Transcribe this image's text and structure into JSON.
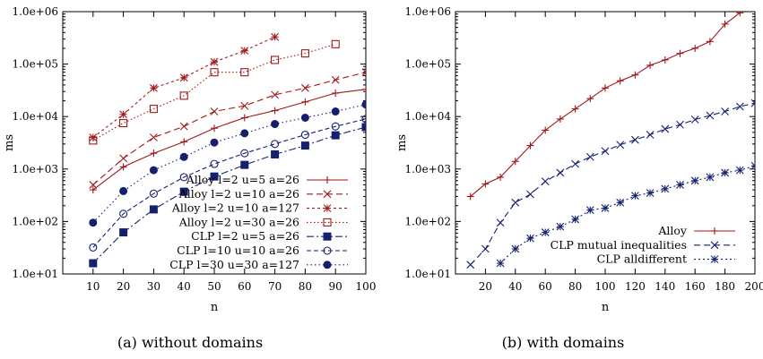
{
  "chart_data": [
    {
      "type": "line",
      "caption": "(a) without domains",
      "xlabel": "n",
      "ylabel": "ms",
      "yscale": "log",
      "xlim": [
        0,
        100
      ],
      "ylim": [
        10,
        1000000
      ],
      "xticks": [
        10,
        20,
        30,
        40,
        50,
        60,
        70,
        80,
        90,
        100
      ],
      "xtick_labels": [
        "10",
        "20",
        "30",
        "40",
        "50",
        "60",
        "70",
        "80",
        "90",
        "100"
      ],
      "yticks": [
        10,
        100,
        1000,
        10000,
        100000,
        1000000
      ],
      "ytick_labels": [
        "1.0e+01",
        "1.0e+02",
        "1.0e+03",
        "1.0e+04",
        "1.0e+05",
        "1.0e+06"
      ],
      "grid": false,
      "legend_position": "bottom-right",
      "series": [
        {
          "name": "Alloy l=2 u=5 a=26",
          "color": "#a01818",
          "dash": "",
          "marker": "plus",
          "x": [
            10,
            20,
            30,
            40,
            50,
            60,
            70,
            80,
            90,
            100
          ],
          "y": [
            400,
            1100,
            2000,
            3300,
            6000,
            9500,
            13000,
            19000,
            28000,
            33000
          ]
        },
        {
          "name": "Alloy l=2 u=10 a=26",
          "color": "#a01818",
          "dash": "7,4",
          "marker": "cross",
          "x": [
            10,
            20,
            30,
            40,
            50,
            60,
            70,
            80,
            90,
            100
          ],
          "y": [
            500,
            1600,
            4000,
            6500,
            12500,
            16000,
            26000,
            35000,
            50000,
            70000
          ]
        },
        {
          "name": "Alloy l=2 u=10 a=127",
          "color": "#a01818",
          "dash": "3,3",
          "marker": "star",
          "x": [
            10,
            20,
            30,
            40,
            50,
            60,
            70
          ],
          "y": [
            4000,
            11000,
            35000,
            55000,
            110000,
            180000,
            330000
          ]
        },
        {
          "name": "Alloy l=2 u=30 a=26",
          "color": "#a01818",
          "dash": "1.5,2.5",
          "marker": "open-square",
          "x": [
            10,
            20,
            30,
            40,
            50,
            60,
            70,
            80,
            90
          ],
          "y": [
            3500,
            7500,
            14000,
            25000,
            70000,
            70000,
            120000,
            160000,
            240000
          ]
        },
        {
          "name": "CLP l=2 u=5 a=26",
          "color": "#14206e",
          "dash": "8,3,2,3",
          "marker": "filled-square",
          "x": [
            10,
            20,
            30,
            40,
            50,
            60,
            70,
            80,
            90,
            100
          ],
          "y": [
            16,
            62,
            170,
            370,
            720,
            1200,
            1900,
            2800,
            4400,
            6300
          ]
        },
        {
          "name": "CLP l=10 u=10 a=26",
          "color": "#14206e",
          "dash": "5,3",
          "marker": "open-circle",
          "x": [
            10,
            20,
            30,
            40,
            50,
            60,
            70,
            80,
            90,
            100
          ],
          "y": [
            32,
            140,
            340,
            700,
            1250,
            2000,
            3000,
            4500,
            6500,
            9000
          ]
        },
        {
          "name": "CLP l=30 u=30 a=127",
          "color": "#14206e",
          "dash": "1.5,3",
          "marker": "filled-circle",
          "x": [
            10,
            20,
            30,
            40,
            50,
            60,
            70,
            80,
            90,
            100
          ],
          "y": [
            95,
            380,
            950,
            1700,
            3200,
            4800,
            7200,
            9500,
            12500,
            17000
          ]
        }
      ]
    },
    {
      "type": "line",
      "caption": "(b) with domains",
      "xlabel": "n",
      "ylabel": "ms",
      "yscale": "log",
      "xlim": [
        0,
        200
      ],
      "ylim": [
        10,
        1000000
      ],
      "xticks": [
        20,
        40,
        60,
        80,
        100,
        120,
        140,
        160,
        180,
        200
      ],
      "xtick_labels": [
        "20",
        "40",
        "60",
        "80",
        "100",
        "120",
        "140",
        "160",
        "180",
        "200"
      ],
      "yticks": [
        10,
        100,
        1000,
        10000,
        100000,
        1000000
      ],
      "ytick_labels": [
        "1.0e+01",
        "1.0e+02",
        "1.0e+03",
        "1.0e+04",
        "1.0e+05",
        "1.0e+06"
      ],
      "grid": false,
      "legend_position": "bottom-right",
      "series": [
        {
          "name": "Alloy",
          "color": "#a01818",
          "dash": "",
          "marker": "plus",
          "x": [
            10,
            20,
            30,
            40,
            50,
            60,
            70,
            80,
            90,
            100,
            110,
            120,
            130,
            140,
            150,
            160,
            170,
            180,
            190
          ],
          "y": [
            300,
            520,
            700,
            1400,
            2800,
            5500,
            9000,
            14000,
            22000,
            35000,
            48000,
            62000,
            95000,
            120000,
            160000,
            200000,
            270000,
            580000,
            950000
          ]
        },
        {
          "name": "CLP mutual inequalities",
          "color": "#14206e",
          "dash": "7,4",
          "marker": "cross",
          "x": [
            10,
            20,
            30,
            40,
            50,
            60,
            70,
            80,
            90,
            100,
            110,
            120,
            130,
            140,
            150,
            160,
            170,
            180,
            190,
            200
          ],
          "y": [
            15,
            30,
            95,
            230,
            330,
            580,
            850,
            1250,
            1700,
            2200,
            2900,
            3600,
            4500,
            5800,
            7000,
            8800,
            10500,
            12500,
            15500,
            18000
          ]
        },
        {
          "name": "CLP alldifferent",
          "color": "#14206e",
          "dash": "2,3",
          "marker": "star",
          "x": [
            30,
            40,
            50,
            60,
            70,
            80,
            90,
            100,
            110,
            120,
            130,
            140,
            150,
            160,
            170,
            180,
            190,
            200
          ],
          "y": [
            16,
            30,
            48,
            62,
            80,
            110,
            165,
            180,
            230,
            310,
            350,
            420,
            500,
            600,
            700,
            850,
            950,
            1150
          ]
        }
      ]
    }
  ]
}
